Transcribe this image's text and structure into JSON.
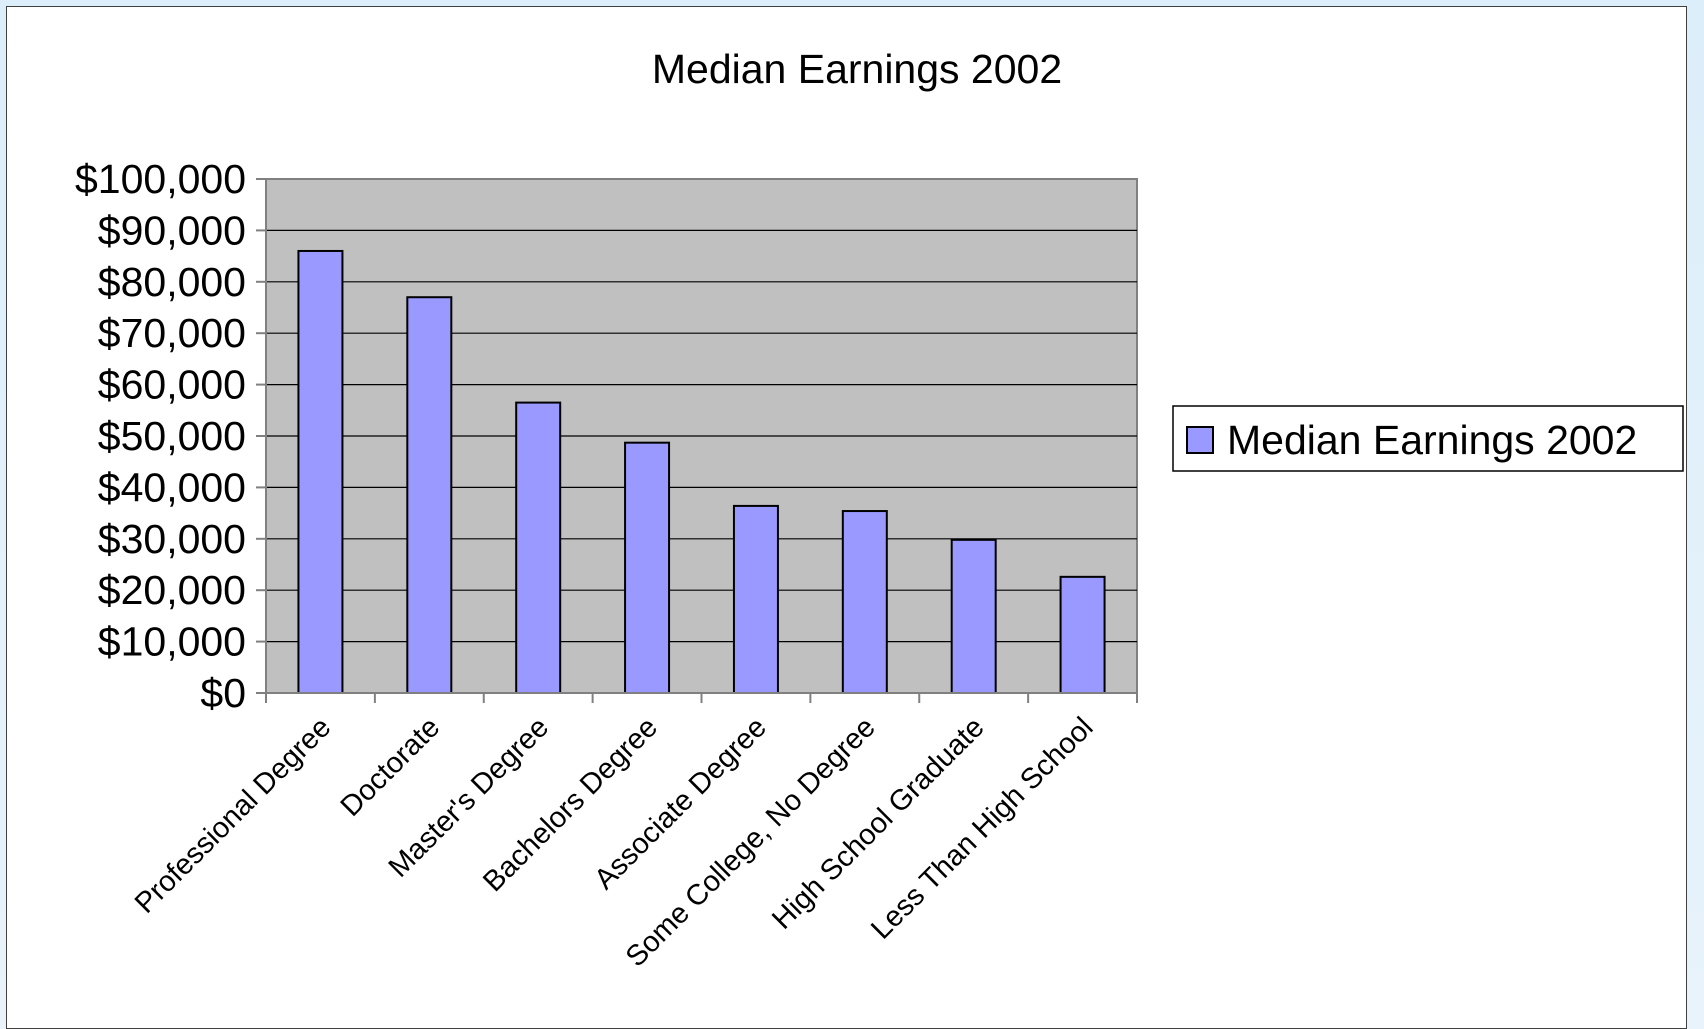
{
  "chart_data": {
    "type": "bar",
    "title": "Median Earnings 2002",
    "xlabel": "",
    "ylabel": "",
    "categories": [
      "Professional Degree",
      "Doctorate",
      "Master's Degree",
      "Bachelors Degree",
      "Associate Degree",
      "Some College, No Degree",
      "High School Graduate",
      "Less Than High School"
    ],
    "series": [
      {
        "name": "Median Earnings 2002",
        "values": [
          86000,
          77000,
          56500,
          48700,
          36400,
          35400,
          29800,
          22600
        ]
      }
    ],
    "ylim": [
      0,
      100000
    ],
    "y_ticks": [
      "$0",
      "$10,000",
      "$20,000",
      "$30,000",
      "$40,000",
      "$50,000",
      "$60,000",
      "$70,000",
      "$80,000",
      "$90,000",
      "$100,000"
    ],
    "grid": true,
    "legend": "right",
    "colors": {
      "bar_fill": "#9999ff",
      "bar_stroke": "#000000",
      "plot_background": "#c0c0c0",
      "gridline": "#000000"
    }
  }
}
